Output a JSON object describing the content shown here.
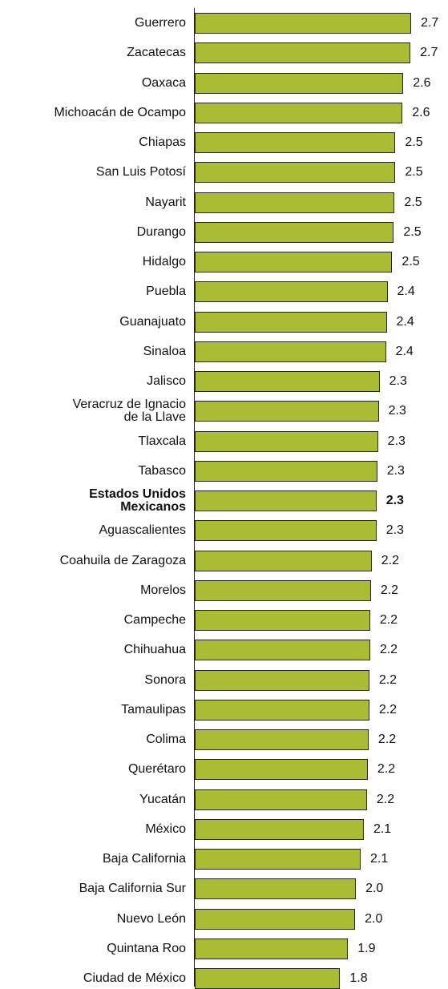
{
  "chart_data": {
    "type": "bar",
    "orientation": "horizontal",
    "categories": [
      "Guerrero",
      "Zacatecas",
      "Oaxaca",
      "Michoacán de Ocampo",
      "Chiapas",
      "San Luis Potosí",
      "Nayarit",
      "Durango",
      "Hidalgo",
      "Puebla",
      "Guanajuato",
      "Sinaloa",
      "Jalisco",
      "Veracruz de Ignacio\nde la Llave",
      "Tlaxcala",
      "Tabasco",
      "Estados Unidos\nMexicanos",
      "Aguascalientes",
      "Coahuila de Zaragoza",
      "Morelos",
      "Campeche",
      "Chihuahua",
      "Sonora",
      "Tamaulipas",
      "Colima",
      "Querétaro",
      "Yucatán",
      "México",
      "Baja California",
      "Baja California Sur",
      "Nuevo León",
      "Quintana Roo",
      "Ciudad de México"
    ],
    "values": [
      2.74,
      2.73,
      2.64,
      2.63,
      2.54,
      2.54,
      2.53,
      2.52,
      2.5,
      2.44,
      2.43,
      2.42,
      2.34,
      2.33,
      2.32,
      2.31,
      2.3,
      2.3,
      2.24,
      2.23,
      2.22,
      2.22,
      2.21,
      2.21,
      2.2,
      2.19,
      2.18,
      2.14,
      2.1,
      2.04,
      2.03,
      1.94,
      1.84
    ],
    "value_labels": [
      "2.7",
      "2.7",
      "2.6",
      "2.6",
      "2.5",
      "2.5",
      "2.5",
      "2.5",
      "2.5",
      "2.4",
      "2.4",
      "2.4",
      "2.3",
      "2.3",
      "2.3",
      "2.3",
      "2.3",
      "2.3",
      "2.2",
      "2.2",
      "2.2",
      "2.2",
      "2.2",
      "2.2",
      "2.2",
      "2.2",
      "2.2",
      "2.1",
      "2.1",
      "2.0",
      "2.0",
      "1.9",
      "1.8"
    ],
    "highlight": "Estados Unidos\nMexicanos",
    "color": "#a9bc33",
    "xlim": [
      0,
      2.8
    ]
  }
}
